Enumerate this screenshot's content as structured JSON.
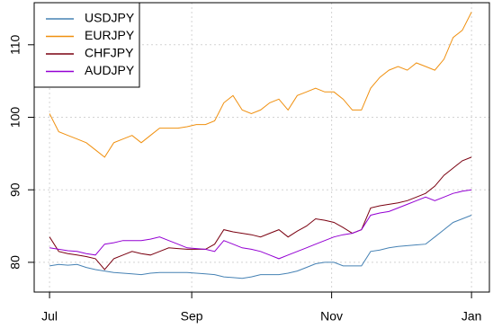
{
  "chart_data": {
    "type": "line",
    "x": [
      0,
      4,
      8,
      12,
      16,
      20,
      24,
      28,
      32,
      36,
      40,
      44,
      48,
      52,
      56,
      60,
      64,
      68,
      72,
      76,
      80,
      84,
      88,
      92,
      96,
      100,
      104,
      108,
      112,
      116,
      120,
      124,
      128,
      132,
      136,
      140,
      144,
      148,
      152,
      156,
      160,
      164,
      168,
      172,
      176,
      180,
      184
    ],
    "series": [
      {
        "name": "USDJPY",
        "color": "#4682b4",
        "values": [
          79.5,
          79.7,
          79.6,
          79.7,
          79.3,
          79,
          78.8,
          78.6,
          78.5,
          78.4,
          78.3,
          78.5,
          78.6,
          78.6,
          78.6,
          78.6,
          78.5,
          78.4,
          78.3,
          78,
          77.9,
          77.8,
          78,
          78.3,
          78.3,
          78.3,
          78.5,
          78.8,
          79.3,
          79.8,
          80,
          80,
          79.5,
          79.5,
          79.5,
          81.5,
          81.7,
          82,
          82.2,
          82.3,
          82.4,
          82.5,
          83.5,
          84.5,
          85.5,
          86,
          86.5
        ]
      },
      {
        "name": "EURJPY",
        "color": "#f0900f",
        "values": [
          100.5,
          98,
          97.5,
          97,
          96.5,
          95.5,
          94.5,
          96.5,
          97,
          97.5,
          96.5,
          97.5,
          98.5,
          98.5,
          98.5,
          98.7,
          99,
          99,
          99.5,
          102,
          103,
          101,
          100.5,
          101,
          102,
          102.5,
          101,
          103,
          103.5,
          104,
          103.5,
          103.5,
          102.5,
          101,
          101,
          104,
          105.5,
          106.5,
          107,
          106.5,
          107.5,
          107,
          106.5,
          108,
          111,
          112,
          114.5
        ]
      },
      {
        "name": "CHFJPY",
        "color": "#7a0010",
        "values": [
          83.5,
          81.5,
          81.2,
          81,
          80.8,
          80.5,
          79,
          80.5,
          81,
          81.5,
          81.2,
          81,
          81.5,
          82,
          81.9,
          81.8,
          81.8,
          81.8,
          82.5,
          84.5,
          84.2,
          84,
          83.8,
          83.5,
          84,
          84.5,
          83.5,
          84.3,
          85,
          86,
          85.8,
          85.5,
          84.8,
          84,
          84.5,
          87.5,
          87.8,
          88,
          88.2,
          88.5,
          89,
          89.5,
          90.5,
          92,
          93,
          94,
          94.5
        ]
      },
      {
        "name": "AUDJPY",
        "color": "#9400d3",
        "values": [
          82,
          81.8,
          81.6,
          81.5,
          81.2,
          81,
          82.5,
          82.7,
          83,
          83,
          83,
          83.2,
          83.5,
          83,
          82.5,
          82,
          81.9,
          81.8,
          81.5,
          83,
          82.5,
          82,
          81.8,
          81.5,
          81,
          80.5,
          81,
          81.5,
          82,
          82.5,
          83,
          83.5,
          83.8,
          84,
          84.5,
          86.5,
          86.8,
          87,
          87.5,
          88,
          88.5,
          89,
          88.5,
          89,
          89.5,
          89.8,
          90
        ]
      }
    ],
    "xlim": [
      -6.7,
      191.8
    ],
    "xticks": [
      {
        "value": 0,
        "label": "Jul"
      },
      {
        "value": 62,
        "label": "Sep"
      },
      {
        "value": 123,
        "label": "Nov"
      },
      {
        "value": 184,
        "label": "Jan"
      }
    ],
    "ylim": [
      75.9,
      115.8
    ],
    "yticks": [
      80,
      90,
      100,
      110
    ],
    "grid": true,
    "legend": "top-left"
  }
}
